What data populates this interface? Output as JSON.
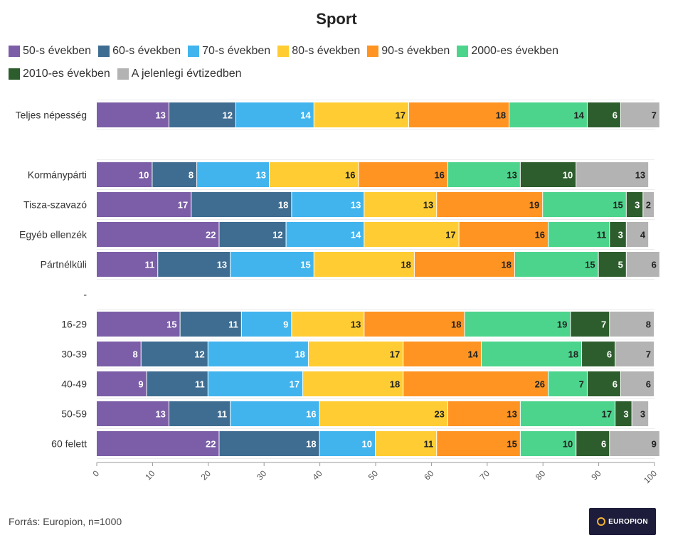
{
  "chart_data": {
    "type": "bar",
    "orientation": "horizontal",
    "stacked": true,
    "title": "Sport",
    "xlabel": "",
    "ylabel": "",
    "xlim": [
      0,
      100
    ],
    "xticks": [
      "0",
      "10",
      "20",
      "30",
      "40",
      "50",
      "60",
      "70",
      "80",
      "90",
      "100"
    ],
    "grid": true,
    "legend_position": "top-left",
    "categories": [
      "Teljes népesség",
      "",
      "Kormánypárti",
      "Tisza-szavazó",
      "Egyéb ellenzék",
      "Pártnélküli",
      "-",
      "16-29",
      "30-39",
      "40-49",
      "50-59",
      "60 felett"
    ],
    "series": [
      {
        "name": "50-s években",
        "color": "#7b5ea7",
        "text_color": "#ffffff",
        "values": [
          13,
          null,
          10,
          17,
          22,
          11,
          null,
          15,
          8,
          9,
          13,
          22
        ]
      },
      {
        "name": "60-s években",
        "color": "#3f6d91",
        "text_color": "#ffffff",
        "values": [
          12,
          null,
          8,
          18,
          12,
          13,
          null,
          11,
          12,
          11,
          11,
          18
        ]
      },
      {
        "name": "70-s években",
        "color": "#41b4ee",
        "text_color": "#ffffff",
        "values": [
          14,
          null,
          13,
          13,
          14,
          15,
          null,
          9,
          18,
          17,
          16,
          10
        ]
      },
      {
        "name": "80-s években",
        "color": "#ffcd33",
        "text_color": "#222222",
        "values": [
          17,
          null,
          16,
          13,
          17,
          18,
          null,
          13,
          17,
          18,
          23,
          11
        ]
      },
      {
        "name": "90-s években",
        "color": "#ff9422",
        "text_color": "#222222",
        "values": [
          18,
          null,
          16,
          19,
          16,
          18,
          null,
          18,
          14,
          26,
          13,
          15
        ]
      },
      {
        "name": "2000-es években",
        "color": "#4cd48c",
        "text_color": "#222222",
        "values": [
          14,
          null,
          13,
          15,
          11,
          15,
          null,
          19,
          18,
          7,
          17,
          10
        ]
      },
      {
        "name": "2010-es években",
        "color": "#2d5d2d",
        "text_color": "#ffffff",
        "values": [
          6,
          null,
          10,
          3,
          3,
          5,
          null,
          7,
          6,
          6,
          3,
          6
        ]
      },
      {
        "name": "A jelenlegi évtizedben",
        "color": "#b3b3b3",
        "text_color": "#222222",
        "values": [
          7,
          null,
          13,
          2,
          4,
          6,
          null,
          8,
          7,
          6,
          3,
          9
        ]
      }
    ]
  },
  "footer": {
    "source": "Forrás: Europion, n=1000",
    "logo_text": "EUROPION"
  }
}
